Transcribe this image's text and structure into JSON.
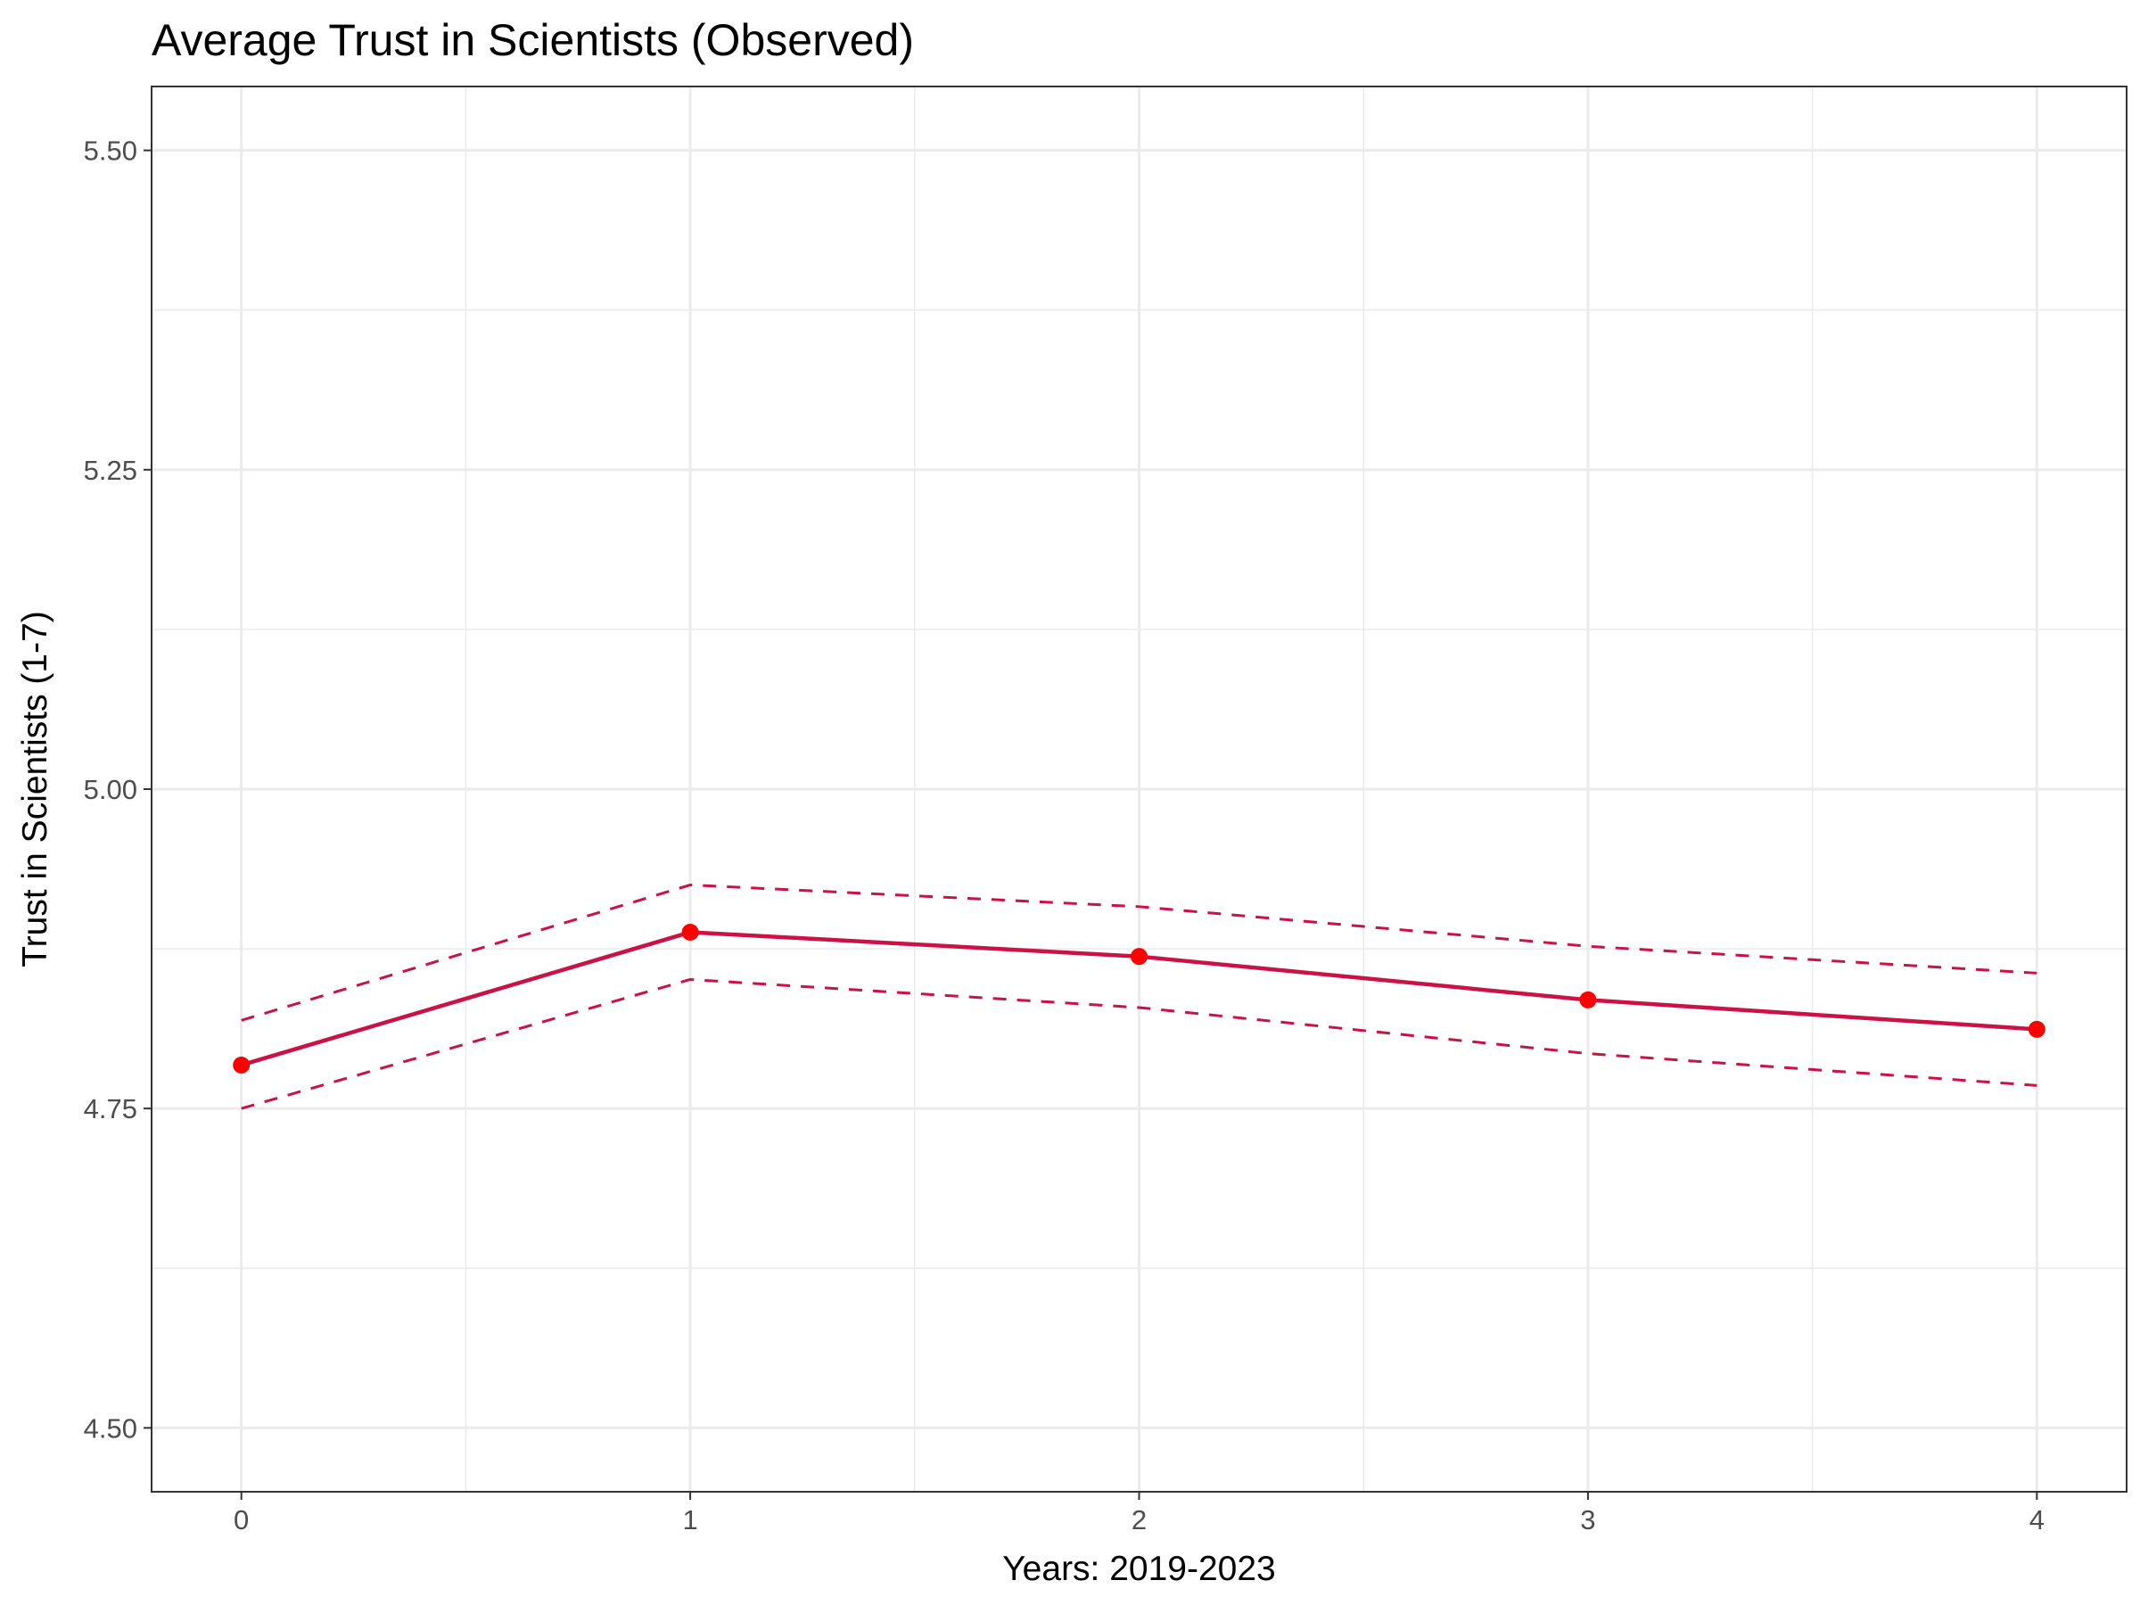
{
  "chart_data": {
    "type": "line",
    "title": "Average Trust in Scientists (Observed)",
    "xlabel": "Years: 2019-2023",
    "ylabel": "Trust in Scientists (1-7)",
    "xlim": [
      -0.2,
      4.2
    ],
    "ylim": [
      4.45,
      5.55
    ],
    "x_ticks": [
      0,
      1,
      2,
      3,
      4
    ],
    "x_tick_labels": [
      "0",
      "1",
      "2",
      "3",
      "4"
    ],
    "y_ticks": [
      4.5,
      4.75,
      5.0,
      5.25,
      5.5
    ],
    "y_tick_labels": [
      "4.50",
      "4.75",
      "5.00",
      "5.25",
      "5.50"
    ],
    "grid": true,
    "series": [
      {
        "role": "mean",
        "x": [
          0,
          1,
          2,
          3,
          4
        ],
        "y": [
          4.784,
          4.888,
          4.869,
          4.835,
          4.812
        ],
        "line_color": "#cc1144",
        "point_color": "#ff0000",
        "line_style": "solid",
        "markers": true
      },
      {
        "role": "upper-ci",
        "x": [
          0,
          1,
          2,
          3,
          4
        ],
        "y": [
          4.819,
          4.925,
          4.908,
          4.877,
          4.856
        ],
        "line_color": "#cc1144",
        "line_style": "dashed",
        "markers": false
      },
      {
        "role": "lower-ci",
        "x": [
          0,
          1,
          2,
          3,
          4
        ],
        "y": [
          4.75,
          4.851,
          4.829,
          4.793,
          4.768
        ],
        "line_color": "#cc1144",
        "line_style": "dashed",
        "markers": false
      }
    ]
  }
}
